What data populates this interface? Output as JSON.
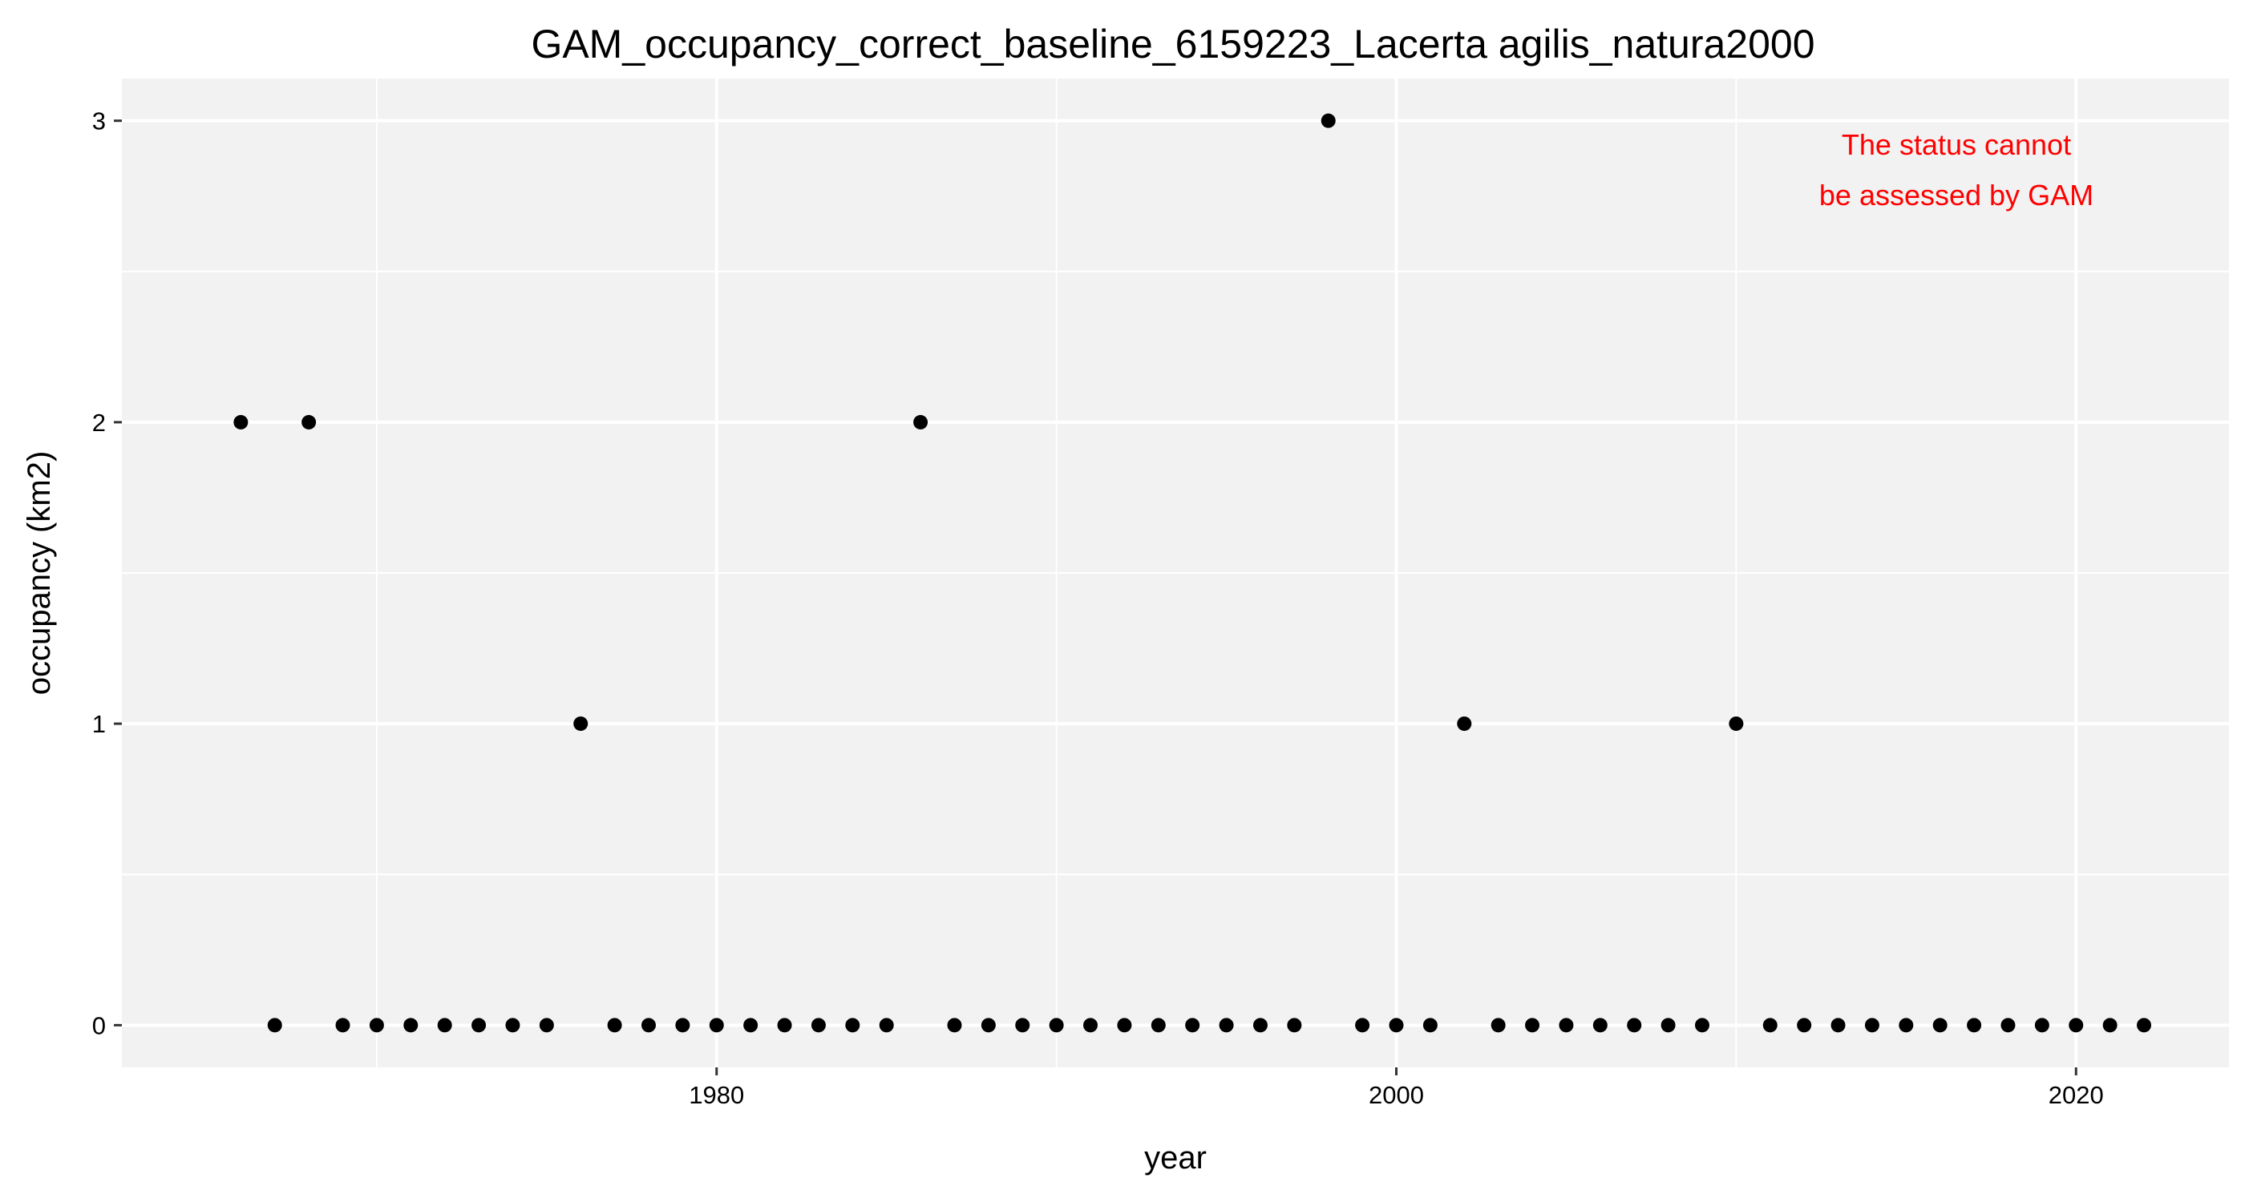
{
  "chart_data": {
    "type": "scatter",
    "title": "GAM_occupancy_correct_baseline_6159223_Lacerta agilis_natura2000",
    "xlabel": "year",
    "ylabel": "occupancy (km2)",
    "xlim": [
      1962.5,
      2024.5
    ],
    "ylim": [
      -0.14,
      3.14
    ],
    "x_ticks": [
      1980,
      2000,
      2020
    ],
    "x_tick_labels": [
      "1980",
      "2000",
      "2020"
    ],
    "x_minor_ticks": [
      1970,
      1990,
      2010
    ],
    "y_ticks": [
      0,
      1,
      2,
      3
    ],
    "y_tick_labels": [
      "0",
      "1",
      "2",
      "3"
    ],
    "y_minor_ticks": [
      0.5,
      1.5,
      2.5
    ],
    "grid": true,
    "legend": "none",
    "colors": {
      "panel_background": "#f2f2f2",
      "grid": "#ffffff",
      "point": "#000000",
      "annotation": "#ff0000"
    },
    "annotation": {
      "lines": [
        "The status cannot",
        "be assessed by GAM"
      ],
      "position": "top-right"
    },
    "series": [
      {
        "x": [
          1966,
          1967,
          1968,
          1969,
          1970,
          1971,
          1972,
          1973,
          1974,
          1975,
          1976,
          1977,
          1978,
          1979,
          1980,
          1981,
          1982,
          1983,
          1984,
          1985,
          1986,
          1987,
          1988,
          1989,
          1990,
          1991,
          1992,
          1993,
          1994,
          1995,
          1996,
          1997,
          1998,
          1999,
          2000,
          2001,
          2002,
          2003,
          2004,
          2005,
          2006,
          2007,
          2008,
          2009,
          2010,
          2011,
          2012,
          2013,
          2014,
          2015,
          2016,
          2017,
          2018,
          2019,
          2020,
          2021,
          2022
        ],
        "y": [
          2,
          0,
          2,
          0,
          0,
          0,
          0,
          0,
          0,
          0,
          1,
          0,
          0,
          0,
          0,
          0,
          0,
          0,
          0,
          0,
          2,
          0,
          0,
          0,
          0,
          0,
          0,
          0,
          0,
          0,
          0,
          0,
          3,
          0,
          0,
          0,
          1,
          0,
          0,
          0,
          0,
          0,
          0,
          0,
          1,
          0,
          0,
          0,
          0,
          0,
          0,
          0,
          0,
          0,
          0,
          0,
          0
        ]
      }
    ]
  }
}
